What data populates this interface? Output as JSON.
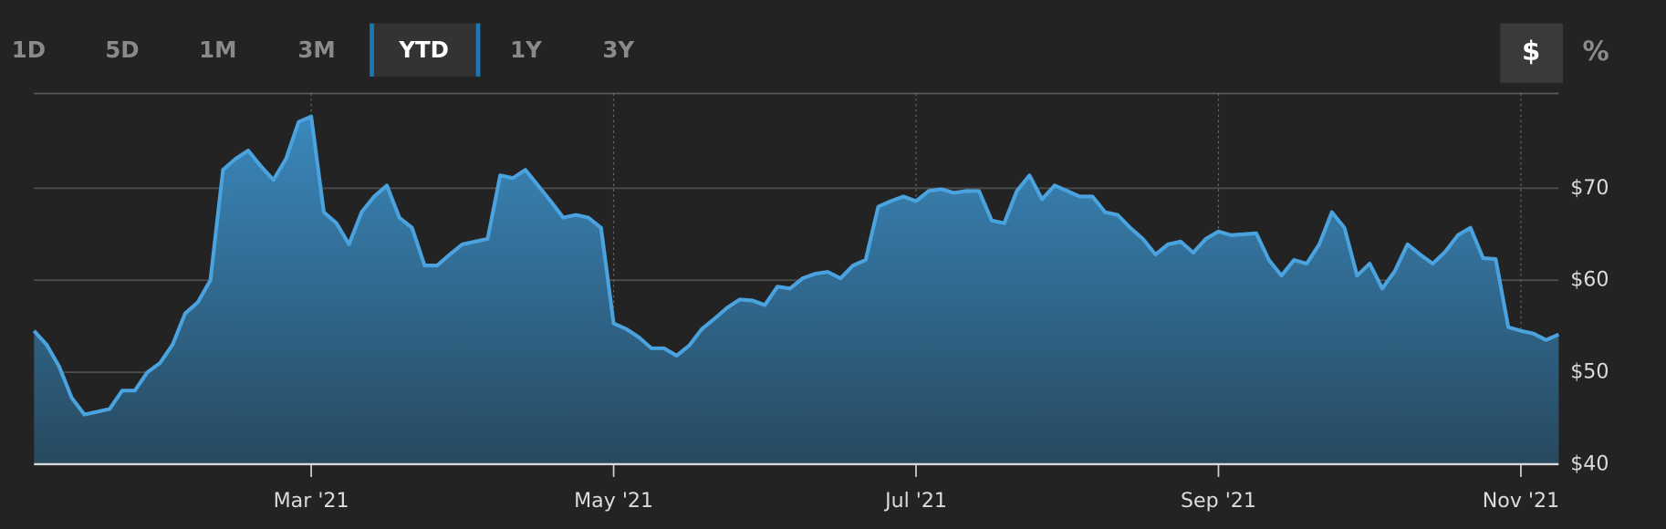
{
  "ui": {
    "range_tabs": [
      "1D",
      "5D",
      "1M",
      "3M",
      "YTD",
      "1Y",
      "3Y"
    ],
    "active_range": 4,
    "units": [
      "$",
      "%"
    ],
    "active_unit": 0
  },
  "chart_data": {
    "type": "area",
    "color": "#4aa3df",
    "categories": [
      null,
      null,
      null,
      null,
      null,
      null,
      null,
      null,
      null,
      null,
      null,
      null,
      null,
      null,
      null,
      null,
      null,
      null,
      null,
      null,
      null,
      null,
      "Mar '21",
      null,
      null,
      null,
      null,
      null,
      null,
      null,
      null,
      null,
      null,
      null,
      null,
      null,
      null,
      null,
      null,
      null,
      null,
      null,
      null,
      null,
      null,
      null,
      "May '21",
      null,
      null,
      null,
      null,
      null,
      null,
      null,
      null,
      null,
      null,
      null,
      null,
      null,
      null,
      null,
      null,
      null,
      null,
      null,
      null,
      null,
      null,
      null,
      "Jul '21",
      null,
      null,
      null,
      null,
      null,
      null,
      null,
      null,
      null,
      null,
      null,
      null,
      null,
      null,
      null,
      null,
      null,
      null,
      null,
      null,
      null,
      null,
      null,
      "Sep '21",
      null,
      null,
      null,
      null,
      null,
      null,
      null,
      null,
      null,
      null,
      null,
      null,
      null,
      null,
      null,
      null,
      null,
      null,
      null,
      null,
      null,
      null,
      null,
      "Nov '21",
      null,
      null,
      null
    ],
    "values": [
      54.5,
      53,
      50.6,
      47.2,
      45.4,
      45.7,
      46,
      48,
      48,
      50,
      51,
      53,
      56.4,
      57.6,
      60,
      72,
      73.2,
      74.1,
      72.4,
      70.9,
      73.2,
      77.2,
      77.8,
      67.4,
      66.2,
      63.9,
      67.4,
      69.1,
      70.3,
      66.8,
      65.7,
      61.6,
      61.6,
      62.8,
      63.9,
      64.2,
      64.5,
      71.4,
      71.1,
      72,
      70.3,
      68.6,
      66.8,
      67.1,
      66.8,
      65.7,
      55.3,
      54.7,
      53.8,
      52.6,
      52.6,
      51.8,
      52.9,
      54.7,
      55.8,
      57,
      57.9,
      57.8,
      57.3,
      59.3,
      59.1,
      60.2,
      60.7,
      60.9,
      60.2,
      61.6,
      62.2,
      68,
      68.6,
      69.1,
      68.6,
      69.7,
      69.9,
      69.5,
      69.7,
      69.7,
      66.5,
      66.2,
      69.7,
      71.4,
      68.8,
      70.3,
      69.7,
      69.1,
      69.1,
      67.4,
      67.1,
      65.7,
      64.5,
      62.8,
      63.9,
      64.2,
      63,
      64.5,
      65.3,
      64.9,
      65,
      65.1,
      62.2,
      60.5,
      62.2,
      61.8,
      63.9,
      67.4,
      65.7,
      60.5,
      61.8,
      59.1,
      61,
      63.9,
      62.8,
      61.8,
      63.1,
      64.9,
      65.7,
      62.4,
      62.3,
      54.9,
      54.5,
      54.2,
      53.5,
      54.1
    ],
    "ylim": [
      40,
      80.3
    ],
    "yticks": [
      {
        "value": 40,
        "label": "$40"
      },
      {
        "value": 50,
        "label": "$50"
      },
      {
        "value": 60,
        "label": "$60"
      },
      {
        "value": 70,
        "label": "$70"
      }
    ],
    "grid": true
  }
}
